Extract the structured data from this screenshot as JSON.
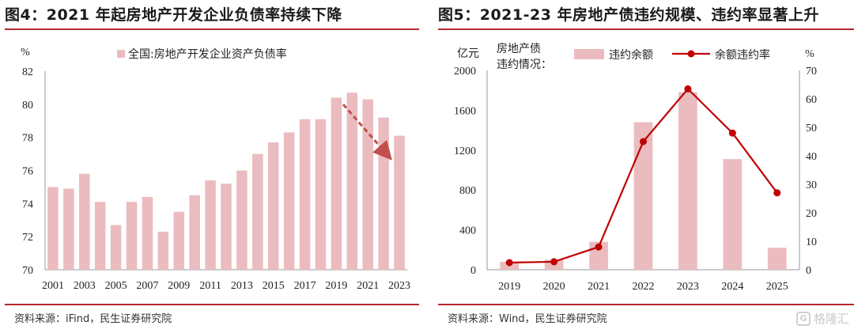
{
  "left": {
    "title": "图4：2021 年起房地产开发企业负债率持续下降",
    "source": "资料来源：iFind，民生证券研究院",
    "chart_data": {
      "type": "bar",
      "unit_label": "%",
      "legend": [
        "全国:房地产开发企业资产负债率"
      ],
      "legend_position": "top-center",
      "categories": [
        "2001",
        "2002",
        "2003",
        "2004",
        "2005",
        "2006",
        "2007",
        "2008",
        "2009",
        "2010",
        "2011",
        "2012",
        "2013",
        "2014",
        "2015",
        "2016",
        "2017",
        "2018",
        "2019",
        "2020",
        "2021",
        "2022",
        "2023"
      ],
      "x_tick_labels": [
        "2001",
        "2003",
        "2005",
        "2007",
        "2009",
        "2011",
        "2013",
        "2015",
        "2017",
        "2019",
        "2021",
        "2023"
      ],
      "series": [
        {
          "name": "全国:房地产开发企业资产负债率",
          "values": [
            75.0,
            74.9,
            75.8,
            74.1,
            72.7,
            74.1,
            74.4,
            72.3,
            73.5,
            74.5,
            75.4,
            75.2,
            76.0,
            77.0,
            77.7,
            78.3,
            79.1,
            79.1,
            80.4,
            80.7,
            80.3,
            79.2,
            78.1
          ]
        }
      ],
      "ylim": [
        70,
        82
      ],
      "yticks": [
        70,
        72,
        74,
        76,
        78,
        80,
        82
      ],
      "grid": false,
      "annotation": "dashed-arrow-down",
      "bar_color": "#ebbcbf",
      "arrow_color": "#c0504d"
    }
  },
  "right": {
    "title": "图5：2021-23 年房地产债违约规模、违约率显著上升",
    "source": "资料来源：Wind，民生证券研究院",
    "inset_label_line1": "房地产债",
    "inset_label_line2": "违约情况：",
    "chart_data": {
      "type": "bar",
      "left_axis_label": "亿元",
      "right_axis_label": "%",
      "legend": [
        "违约余额",
        "余额违约率"
      ],
      "legend_position": "top",
      "categories": [
        "2019",
        "2020",
        "2021",
        "2022",
        "2023",
        "2024",
        "2025"
      ],
      "series": [
        {
          "name": "违约余额",
          "type": "bar",
          "axis": "left",
          "values": [
            80,
            100,
            280,
            1480,
            1780,
            1110,
            220
          ]
        },
        {
          "name": "余额违约率",
          "type": "line",
          "axis": "right",
          "values": [
            2.5,
            2.8,
            8.0,
            45.0,
            63.5,
            48.0,
            27.0
          ]
        }
      ],
      "ylim_left": [
        0,
        2000
      ],
      "yticks_left": [
        0,
        400,
        800,
        1200,
        1600,
        2000
      ],
      "ylim_right": [
        0,
        70
      ],
      "yticks_right": [
        0,
        10,
        20,
        30,
        40,
        50,
        60,
        70
      ],
      "grid": false,
      "bar_color": "#ebbcbf",
      "line_color": "#c00000"
    }
  },
  "watermark": {
    "logo": "G",
    "text": "格隆汇"
  }
}
